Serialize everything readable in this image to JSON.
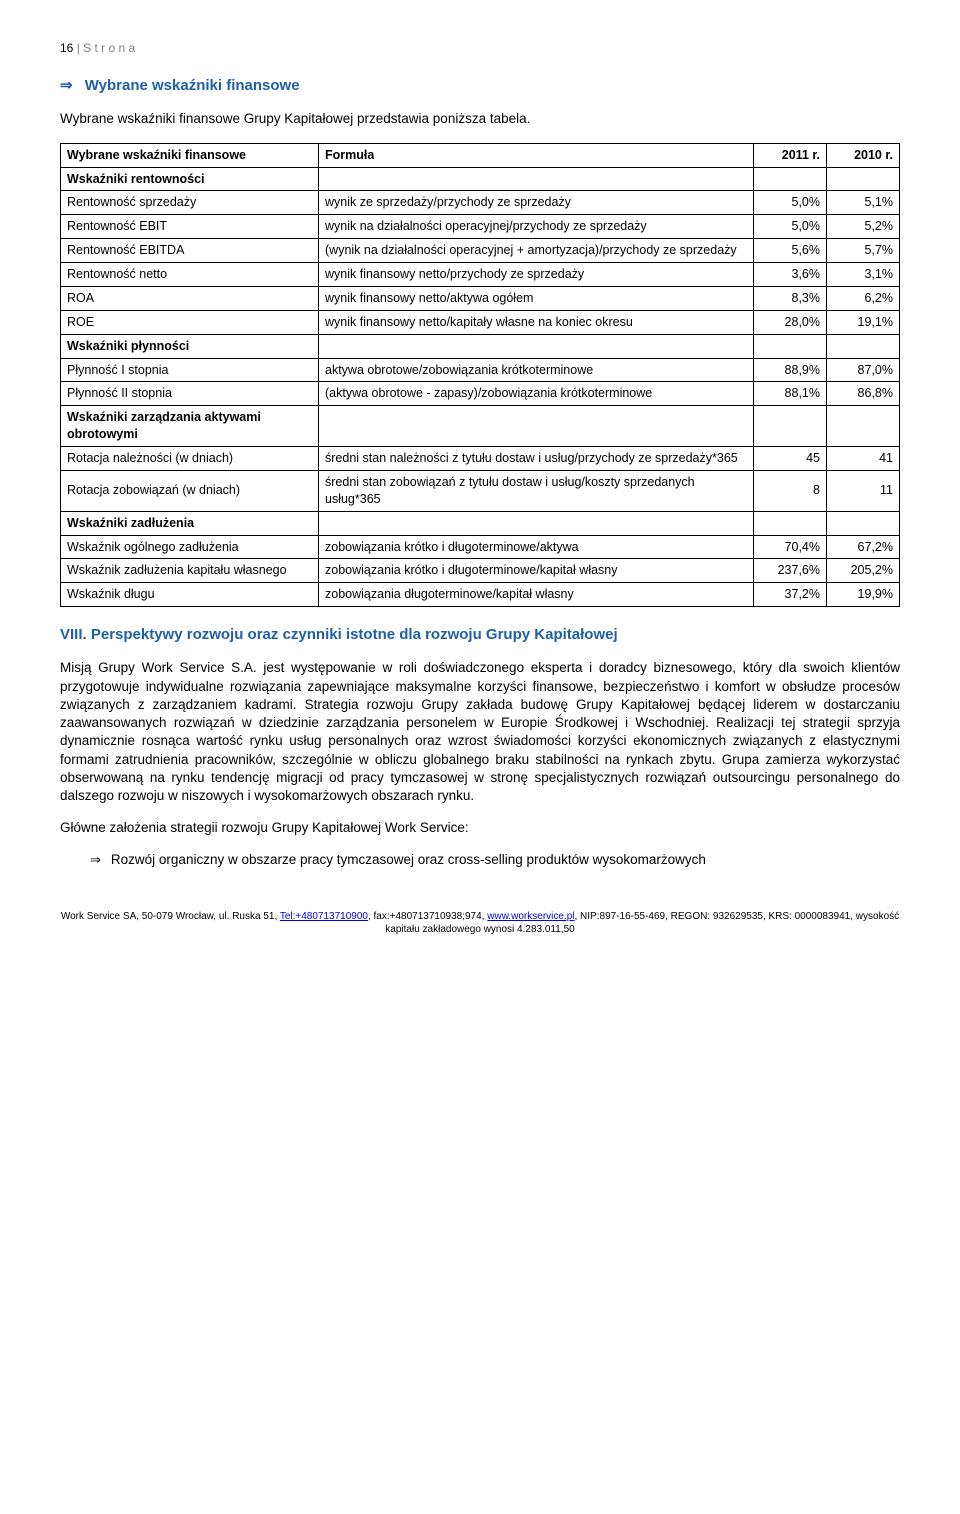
{
  "pageHeader": {
    "number": "16",
    "label": "S t r o n a"
  },
  "section1": {
    "arrow": "⇒",
    "title": "Wybrane wskaźniki finansowe",
    "intro": "Wybrane wskaźniki finansowe Grupy Kapitałowej przedstawia poniższa tabela."
  },
  "table": {
    "headers": [
      "Wybrane wskaźniki finansowe",
      "Formuła",
      "2011 r.",
      "2010 r."
    ],
    "groups": [
      {
        "groupLabel": "Wskaźniki rentowności",
        "rows": [
          {
            "label": "Rentowność sprzedaży",
            "formula": "wynik ze sprzedaży/przychody ze sprzedaży",
            "v1": "5,0%",
            "v2": "5,1%"
          },
          {
            "label": "Rentowność EBIT",
            "formula": "wynik na działalności operacyjnej/przychody ze sprzedaży",
            "v1": "5,0%",
            "v2": "5,2%"
          },
          {
            "label": "Rentowność EBITDA",
            "formula": "(wynik na działalności operacyjnej + amortyzacja)/przychody ze sprzedaży",
            "v1": "5,6%",
            "v2": "5,7%"
          },
          {
            "label": "Rentowność netto",
            "formula": "wynik finansowy netto/przychody ze sprzedaży",
            "v1": "3,6%",
            "v2": "3,1%"
          },
          {
            "label": "ROA",
            "formula": "wynik finansowy netto/aktywa ogółem",
            "v1": "8,3%",
            "v2": "6,2%"
          },
          {
            "label": "ROE",
            "formula": "wynik finansowy netto/kapitały własne na koniec okresu",
            "v1": "28,0%",
            "v2": "19,1%"
          }
        ]
      },
      {
        "groupLabel": "Wskaźniki płynności",
        "rows": [
          {
            "label": "Płynność I stopnia",
            "formula": "aktywa obrotowe/zobowiązania krótkoterminowe",
            "v1": "88,9%",
            "v2": "87,0%"
          },
          {
            "label": "Płynność II stopnia",
            "formula": "(aktywa obrotowe - zapasy)/zobowiązania krótkoterminowe",
            "v1": "88,1%",
            "v2": "86,8%"
          }
        ]
      },
      {
        "groupLabel": "Wskaźniki zarządzania aktywami obrotowymi",
        "rows": [
          {
            "label": "Rotacja należności (w dniach)",
            "formula": "średni stan należności z tytułu dostaw i usług/przychody ze sprzedaży*365",
            "v1": "45",
            "v2": "41"
          },
          {
            "label": "Rotacja zobowiązań (w dniach)",
            "formula": "średni stan zobowiązań z tytułu dostaw i usług/koszty sprzedanych usług*365",
            "v1": "8",
            "v2": "11"
          }
        ]
      },
      {
        "groupLabel": "Wskaźniki zadłużenia",
        "rows": [
          {
            "label": "Wskaźnik ogólnego zadłużenia",
            "formula": "zobowiązania krótko i długoterminowe/aktywa",
            "v1": "70,4%",
            "v2": "67,2%"
          },
          {
            "label": "Wskaźnik zadłużenia kapitału własnego",
            "formula": "zobowiązania krótko i długoterminowe/kapitał własny",
            "v1": "237,6%",
            "v2": "205,2%"
          },
          {
            "label": "Wskaźnik długu",
            "formula": "zobowiązania długoterminowe/kapitał własny",
            "v1": "37,2%",
            "v2": "19,9%"
          }
        ]
      }
    ]
  },
  "section8": {
    "title": "VIII. Perspektywy rozwoju oraz czynniki istotne dla rozwoju Grupy Kapitałowej",
    "para1": "Misją Grupy Work Service S.A. jest występowanie w roli doświadczonego eksperta i doradcy biznesowego, który dla swoich klientów przygotowuje indywidualne rozwiązania zapewniające maksymalne korzyści finansowe, bezpieczeństwo i komfort w obsłudze procesów związanych z zarządzaniem kadrami. Strategia rozwoju Grupy zakłada budowę Grupy Kapitałowej będącej liderem w dostarczaniu zaawansowanych rozwiązań w dziedzinie zarządzania personelem w Europie Środkowej i Wschodniej. Realizacji tej strategii sprzyja dynamicznie rosnąca wartość rynku usług personalnych oraz wzrost świadomości korzyści ekonomicznych związanych z elastycznymi formami zatrudnienia pracowników, szczególnie w obliczu globalnego braku stabilności na rynkach zbytu. Grupa zamierza wykorzystać obserwowaną na rynku tendencję migracji od pracy tymczasowej w stronę specjalistycznych rozwiązań outsourcingu personalnego do dalszego rozwoju w niszowych i wysokomarżowych obszarach rynku.",
    "para2": "Główne założenia strategii rozwoju Grupy Kapitałowej Work Service:",
    "bullet": {
      "arrow": "⇒",
      "text": "Rozwój organiczny w obszarze pracy tymczasowej oraz cross-selling produktów wysokomarżowych"
    }
  },
  "footer": {
    "line1_a": "Work Service SA, 50-079 Wrocław, ul. Ruska 51, ",
    "tel_label": "Tel:+480713710900",
    "line1_b": ", fax:+480713710938;974, ",
    "www_label": "www.workservice.pl",
    "line1_c": ", NIP:897-16-55-469, REGON: 932629535, KRS: 0000083941, wysokość kapitału zakładowego wynosi 4.283.011,50"
  }
}
